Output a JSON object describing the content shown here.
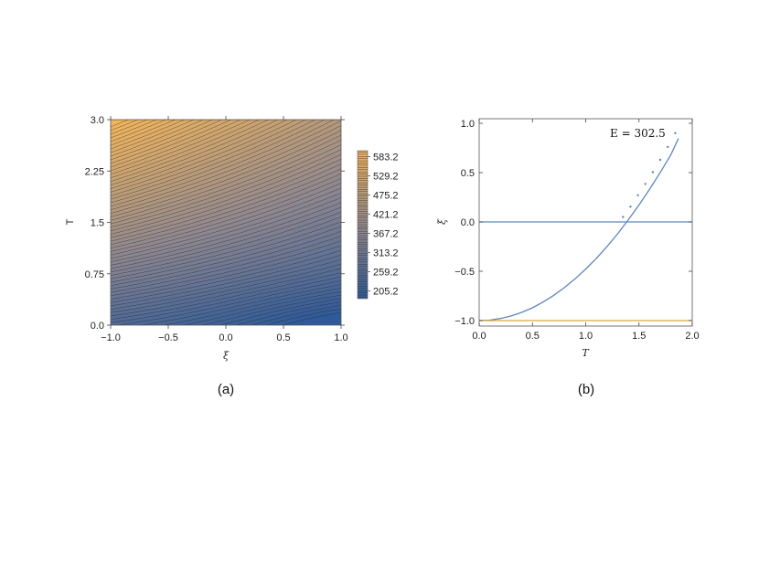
{
  "chart_data": [
    {
      "panel": "(a)",
      "type": "heatmap",
      "xlabel": "ξ",
      "ylabel": "T",
      "xlim": [
        -1.0,
        1.0
      ],
      "ylim": [
        0.0,
        3.0
      ],
      "xticks": [
        "−1.0",
        "−0.5",
        "0.0",
        "0.5",
        "1.0"
      ],
      "xtick_values": [
        -1.0,
        -0.5,
        0.0,
        0.5,
        1.0
      ],
      "yticks": [
        "0.0",
        "0.75",
        "1.5",
        "2.25",
        "3.0"
      ],
      "ytick_values": [
        0.0,
        0.75,
        1.5,
        2.25,
        3.0
      ],
      "colorbar": {
        "labels": [
          "583.2",
          "529.2",
          "475.2",
          "421.2",
          "367.2",
          "313.2",
          "259.2",
          "205.2"
        ],
        "values": [
          583.2,
          529.2,
          475.2,
          421.2,
          367.2,
          313.2,
          259.2,
          205.2
        ],
        "range": [
          183.0,
          600.0
        ],
        "low_color": "#2e5a99",
        "mid_color": "#8e8790",
        "high_color": "#f2b55c"
      },
      "corner_values": {
        "xi_-1_T_0": 245,
        "xi_1_T_0": 190,
        "xi_-1_T_3": 600,
        "xi_1_T_3": 455
      }
    },
    {
      "panel": "(b)",
      "type": "line",
      "xlabel": "T",
      "ylabel": "ξ",
      "xlim": [
        0.0,
        2.0
      ],
      "ylim": [
        -1.0,
        1.0
      ],
      "xticks": [
        "0.0",
        "0.5",
        "1.0",
        "1.5",
        "2.0"
      ],
      "xtick_values": [
        0.0,
        0.5,
        1.0,
        1.5,
        2.0
      ],
      "yticks": [
        "1.0",
        "0.5",
        "0.0",
        "−0.5",
        "−1.0"
      ],
      "ytick_values": [
        1.0,
        0.5,
        0.0,
        -0.5,
        -1.0
      ],
      "annotation": "E = 302.5",
      "series": [
        {
          "color": "#5e86be",
          "style": "solid",
          "x": [
            0.0,
            0.1,
            0.2,
            0.3,
            0.4,
            0.5,
            0.6,
            0.7,
            0.8,
            0.9,
            1.0,
            1.1,
            1.2,
            1.3,
            1.4,
            1.5,
            1.6,
            1.7,
            1.8,
            1.87
          ],
          "y": [
            -1.0,
            -0.995,
            -0.979,
            -0.953,
            -0.917,
            -0.87,
            -0.812,
            -0.744,
            -0.666,
            -0.577,
            -0.478,
            -0.369,
            -0.249,
            -0.119,
            0.022,
            0.172,
            0.332,
            0.502,
            0.682,
            0.846
          ]
        },
        {
          "color": "#5e86be",
          "style": "solid",
          "x": [
            0.0,
            2.0
          ],
          "y": [
            0.0,
            0.0
          ]
        },
        {
          "color": "#dba73a",
          "style": "solid",
          "x": [
            0.0,
            2.0
          ],
          "y": [
            -1.0,
            -1.0
          ]
        },
        {
          "color": "#5e86be",
          "style": "dotted",
          "x": [
            1.35,
            1.42,
            1.49,
            1.56,
            1.63,
            1.7,
            1.77,
            1.84
          ],
          "y": [
            0.05,
            0.155,
            0.27,
            0.385,
            0.505,
            0.63,
            0.76,
            0.9
          ]
        }
      ]
    }
  ],
  "captions": {
    "a": "(a)",
    "b": "(b)"
  }
}
